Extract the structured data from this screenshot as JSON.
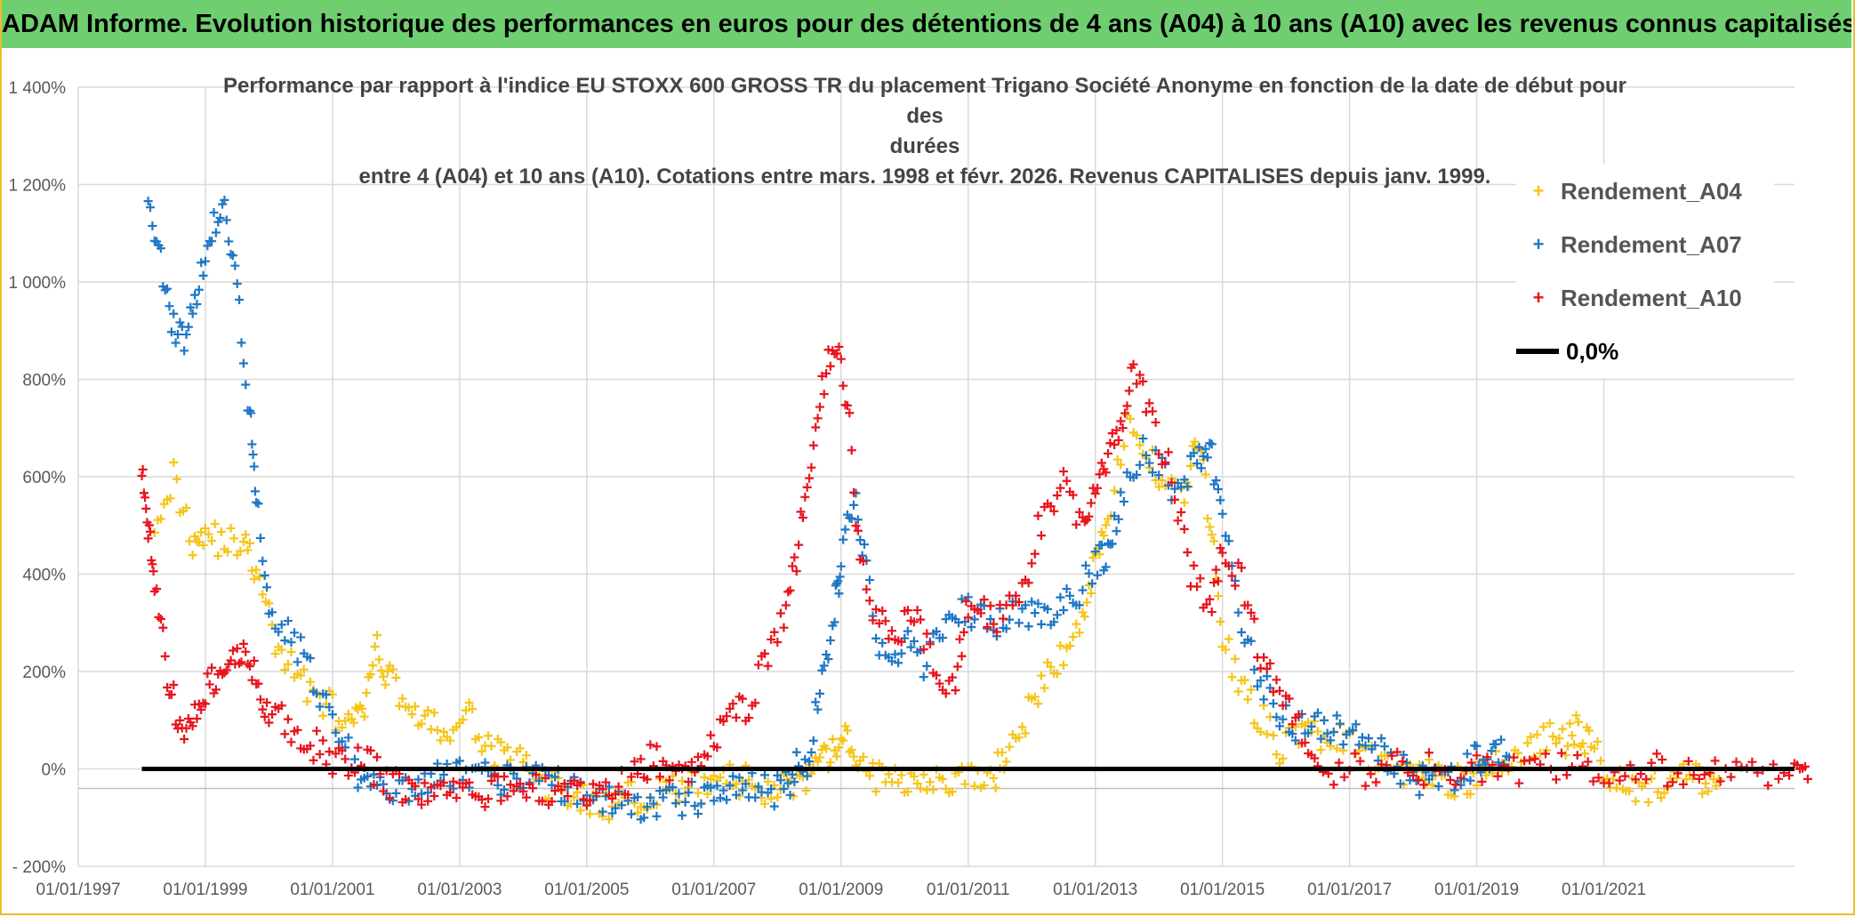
{
  "banner": "ADAM Informe. Evolution historique des performances en euros pour des détentions de 4 ans (A04) à 10 ans (A10) avec les revenus connus capitalisés",
  "chart_data": {
    "type": "scatter",
    "title_lines": [
      "Performance par rapport à l'indice EU STOXX 600 GROSS TR  du placement Trigano Société Anonyme en fonction de la date de début pour des",
      "durées",
      "entre 4 (A04) et 10 ans (A10). Cotations entre mars. 1998 et févr. 2026. Revenus CAPITALISES depuis janv. 1999."
    ],
    "xlabel": "",
    "ylabel": "",
    "x_range": [
      1997.0,
      2024.0
    ],
    "ylim": [
      -200,
      1400
    ],
    "x_ticks": [
      1997,
      1999,
      2001,
      2003,
      2005,
      2007,
      2009,
      2011,
      2013,
      2015,
      2017,
      2019,
      2021
    ],
    "x_tick_labels": [
      "01/01/1997",
      "01/01/1999",
      "01/01/2001",
      "01/01/2003",
      "01/01/2005",
      "01/01/2007",
      "01/01/2009",
      "01/01/2011",
      "01/01/2013",
      "01/01/2015",
      "01/01/2017",
      "01/01/2019",
      "01/01/2021"
    ],
    "y_ticks": [
      -200,
      0,
      200,
      400,
      600,
      800,
      1000,
      1200,
      1400
    ],
    "y_tick_labels": [
      "- 200%",
      "0%",
      "200%",
      "400%",
      "600%",
      "800%",
      "1 000%",
      "1 200%",
      "1 400%"
    ],
    "grid": true,
    "legend_position": "top-right",
    "series": [
      {
        "name": "Rendement_A04",
        "color": "#f5c518",
        "marker": "+",
        "x": [
          1998.2,
          1998.5,
          1998.8,
          1999.0,
          1999.3,
          1999.6,
          1999.8,
          2000.1,
          2000.4,
          2000.7,
          2001.0,
          2001.3,
          2001.5,
          2001.7,
          2001.9,
          2002.2,
          2002.5,
          2002.8,
          2003.1,
          2003.4,
          2003.7,
          2004.0,
          2004.3,
          2004.6,
          2004.9,
          2005.2,
          2005.5,
          2005.8,
          2006.1,
          2006.4,
          2006.7,
          2007.0,
          2007.3,
          2007.6,
          2007.9,
          2008.2,
          2008.5,
          2008.7,
          2008.9,
          2009.1,
          2009.3,
          2009.6,
          2009.9,
          2010.2,
          2010.5,
          2010.8,
          2011.1,
          2011.4,
          2011.6,
          2011.9,
          2012.2,
          2012.5,
          2012.8,
          2013.0,
          2013.2,
          2013.5,
          2013.8,
          2014.1,
          2014.4,
          2014.6,
          2014.8,
          2015.0,
          2015.3,
          2015.6,
          2015.9,
          2016.2,
          2016.5,
          2016.8,
          2017.1,
          2017.4,
          2017.7,
          2018.0,
          2018.3,
          2018.6,
          2018.9,
          2019.2,
          2019.5,
          2019.8,
          2020.1,
          2020.4,
          2020.6,
          2020.8,
          2021.1,
          2021.4,
          2021.7,
          2022.0,
          2022.3,
          2022.6
        ],
        "y": [
          520,
          600,
          470,
          490,
          460,
          470,
          400,
          260,
          200,
          160,
          120,
          80,
          130,
          240,
          190,
          130,
          90,
          70,
          110,
          60,
          20,
          10,
          -30,
          -40,
          -60,
          -80,
          -70,
          -55,
          -50,
          -45,
          -40,
          -30,
          -20,
          -30,
          -40,
          -30,
          -25,
          10,
          40,
          60,
          10,
          -20,
          -25,
          -10,
          -15,
          -30,
          -20,
          -20,
          40,
          100,
          180,
          240,
          300,
          440,
          520,
          700,
          640,
          600,
          560,
          680,
          520,
          280,
          160,
          110,
          40,
          80,
          70,
          60,
          40,
          10,
          0,
          0,
          -10,
          -20,
          -30,
          0,
          20,
          40,
          60,
          60,
          80,
          50,
          -10,
          -30,
          -40,
          -30,
          -20,
          -20
        ]
      },
      {
        "name": "Rendement_A07",
        "color": "#1f77c4",
        "marker": "+",
        "x": [
          1998.1,
          1998.3,
          1998.5,
          1998.7,
          1998.9,
          1999.1,
          1999.3,
          1999.5,
          1999.7,
          1999.8,
          2000.0,
          2000.3,
          2000.6,
          2000.9,
          2001.2,
          2001.5,
          2001.8,
          2002.1,
          2002.4,
          2002.7,
          2003.0,
          2003.3,
          2003.6,
          2003.9,
          2004.2,
          2004.5,
          2004.8,
          2005.1,
          2005.4,
          2005.7,
          2006.0,
          2006.3,
          2006.6,
          2006.9,
          2007.2,
          2007.5,
          2007.8,
          2008.1,
          2008.3,
          2008.5,
          2008.7,
          2008.9,
          2009.0,
          2009.2,
          2009.4,
          2009.7,
          2010.0,
          2010.3,
          2010.6,
          2010.9,
          2011.2,
          2011.5,
          2011.8,
          2012.1,
          2012.4,
          2012.7,
          2013.0,
          2013.2,
          2013.4,
          2013.7,
          2014.0,
          2014.3,
          2014.6,
          2014.8,
          2015.0,
          2015.3,
          2015.6,
          2015.9,
          2016.2,
          2016.5,
          2016.8,
          2017.1,
          2017.4,
          2017.7,
          2018.0,
          2018.3,
          2018.6,
          2018.9,
          2019.1,
          2019.3
        ],
        "y": [
          1150,
          1050,
          900,
          870,
          1000,
          1100,
          1150,
          1000,
          720,
          580,
          330,
          280,
          220,
          130,
          60,
          -40,
          -50,
          -40,
          -30,
          -20,
          0,
          -10,
          -20,
          -10,
          0,
          -30,
          -50,
          -60,
          -65,
          -70,
          -70,
          -65,
          -60,
          -55,
          -50,
          -40,
          -45,
          -40,
          0,
          20,
          190,
          330,
          420,
          560,
          400,
          200,
          260,
          220,
          280,
          330,
          320,
          300,
          330,
          310,
          330,
          360,
          420,
          440,
          560,
          650,
          620,
          560,
          640,
          660,
          500,
          300,
          180,
          110,
          80,
          100,
          80,
          60,
          40,
          10,
          -20,
          -30,
          -30,
          10,
          20,
          40
        ]
      },
      {
        "name": "Rendement_A10",
        "color": "#e8141c",
        "marker": "+",
        "x": [
          1998.0,
          1998.1,
          1998.2,
          1998.4,
          1998.6,
          1998.8,
          1999.0,
          1999.2,
          1999.4,
          1999.6,
          1999.8,
          2000.0,
          2000.3,
          2000.6,
          2000.9,
          2001.2,
          2001.5,
          2001.8,
          2002.1,
          2002.4,
          2002.7,
          2003.0,
          2003.3,
          2003.6,
          2003.9,
          2004.2,
          2004.5,
          2004.8,
          2005.1,
          2005.4,
          2005.7,
          2006.0,
          2006.3,
          2006.6,
          2006.9,
          2007.2,
          2007.5,
          2007.8,
          2008.1,
          2008.3,
          2008.5,
          2008.7,
          2008.9,
          2009.1,
          2009.3,
          2009.6,
          2009.9,
          2010.2,
          2010.5,
          2010.8,
          2011.0,
          2011.3,
          2011.6,
          2011.9,
          2012.2,
          2012.5,
          2012.8,
          2013.0,
          2013.2,
          2013.4,
          2013.6,
          2013.9,
          2014.2,
          2014.5,
          2014.8,
          2015.0,
          2015.3,
          2015.6,
          2015.9,
          2016.2,
          2016.5,
          2017.0,
          2017.5,
          2018.0,
          2018.5,
          2019.0,
          2019.5,
          2020.0,
          2020.5,
          2021.0,
          2021.5,
          2022.0,
          2022.5,
          2023.0,
          2023.5,
          2024.0
        ],
        "y": [
          620,
          500,
          380,
          200,
          80,
          120,
          160,
          200,
          240,
          230,
          200,
          110,
          90,
          60,
          30,
          10,
          20,
          -20,
          -40,
          -50,
          -40,
          -30,
          -40,
          -50,
          -45,
          -40,
          -45,
          -50,
          -55,
          -40,
          -20,
          20,
          10,
          0,
          40,
          100,
          120,
          220,
          300,
          440,
          600,
          780,
          880,
          760,
          420,
          300,
          280,
          320,
          200,
          180,
          340,
          310,
          320,
          380,
          540,
          580,
          500,
          580,
          640,
          700,
          850,
          700,
          600,
          400,
          320,
          440,
          380,
          240,
          160,
          100,
          0,
          0,
          0,
          0,
          0,
          0,
          0,
          0,
          0,
          0,
          0,
          0,
          0,
          0,
          0,
          0
        ]
      },
      {
        "name": "0,0%",
        "color": "#000000",
        "type": "line",
        "x": [
          1998.0,
          2024.0
        ],
        "y": [
          0,
          0
        ]
      }
    ]
  }
}
